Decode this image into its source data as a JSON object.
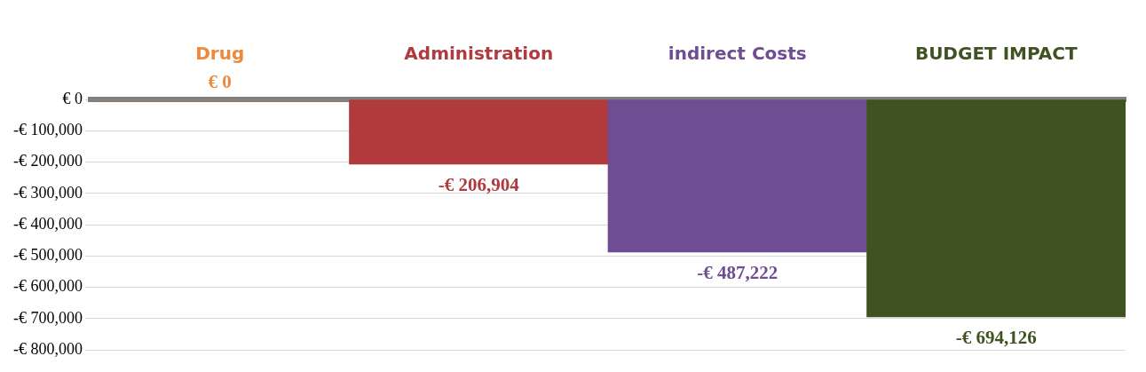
{
  "chart_data": {
    "type": "bar",
    "categories": [
      "Drug",
      "Administration",
      "indirect Costs",
      "BUDGET IMPACT"
    ],
    "values": [
      0,
      -206904,
      -487222,
      -694126
    ],
    "colors": [
      "#f0883a",
      "#b03a3c",
      "#6e4d92",
      "#3f5222"
    ],
    "value_labels": [
      "€ 0",
      "-€ 206,904",
      "-€ 487,222",
      "-€ 694,126"
    ],
    "ylim": [
      -800000,
      0
    ],
    "yticks": [
      {
        "value": 0,
        "label": "€ 0"
      },
      {
        "value": -100000,
        "label": "-€ 100,000"
      },
      {
        "value": -200000,
        "label": "-€ 200,000"
      },
      {
        "value": -300000,
        "label": "-€ 300,000"
      },
      {
        "value": -400000,
        "label": "-€ 400,000"
      },
      {
        "value": -500000,
        "label": "-€ 500,000"
      },
      {
        "value": -600000,
        "label": "-€ 600,000"
      },
      {
        "value": -700000,
        "label": "-€ 700,000"
      },
      {
        "value": -800000,
        "label": "-€ 800,000"
      }
    ],
    "grid": "y",
    "legend": false
  }
}
